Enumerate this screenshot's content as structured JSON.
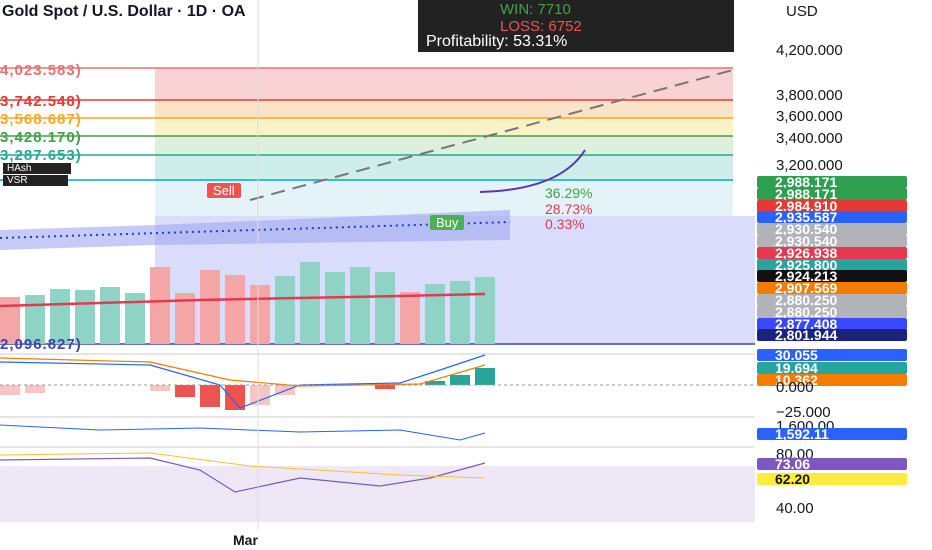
{
  "header": {
    "title": "Gold Spot / U.S. Dollar · 1D · OA",
    "currency": "USD"
  },
  "stats": {
    "win": "WIN: 7710",
    "loss": "LOSS: 6752",
    "profitability": "Profitability: 53.31%"
  },
  "price_axis": [
    "4,200.000",
    "3,800.000",
    "3,600.000",
    "3,400.000",
    "3,200.000"
  ],
  "price_tags": [
    {
      "label": "2,988.171",
      "color": "#2e9e4f"
    },
    {
      "label": "2,988.171",
      "color": "#2e9e4f"
    },
    {
      "label": "2,984.910",
      "color": "#e53935"
    },
    {
      "label": "2,935.587",
      "color": "#2962ff"
    },
    {
      "label": "2,930.540",
      "color": "#b0b3b8"
    },
    {
      "label": "2,930.540",
      "color": "#b0b3b8"
    },
    {
      "label": "2,926.938",
      "color": "#e53950"
    },
    {
      "label": "2,925.800",
      "color": "#26a69a"
    },
    {
      "label": "2,924.213",
      "color": "#111111"
    },
    {
      "label": "2,907.569",
      "color": "#f57c00"
    },
    {
      "label": "2,880.250",
      "color": "#b0b3b8"
    },
    {
      "label": "2,880.250",
      "color": "#b0b3b8"
    },
    {
      "label": "2,877.408",
      "color": "#3949ff"
    },
    {
      "label": "2,801.944",
      "color": "#1a237e"
    }
  ],
  "fib_labels": [
    "4,023.583)",
    "3,742.548)",
    "3,568.687)",
    "3,428.170)",
    "3,287.653)",
    "2,096.827)"
  ],
  "signals": {
    "sell": "Sell",
    "buy": "Buy",
    "pct": [
      "36.29%",
      "28.73%",
      "0.33%"
    ]
  },
  "legend": {
    "a": "HAsh",
    "b": "VSR"
  },
  "oscillator": {
    "tags": [
      {
        "label": "30.055",
        "color": "#2962ff"
      },
      {
        "label": "19.694",
        "color": "#26a69a"
      },
      {
        "label": "10.362",
        "color": "#f57c00"
      }
    ],
    "axis": [
      "0.000",
      "−25.000"
    ]
  },
  "volume_panel": {
    "axis": "1,600.00",
    "tag": {
      "label": "1,592.11",
      "color": "#2962ff"
    }
  },
  "rsi_panel": {
    "axis": [
      "80.00",
      "40.00"
    ],
    "tags": [
      {
        "label": "73.06",
        "color": "#7e57c2"
      },
      {
        "label": "62.20",
        "color": "#ffeb3b"
      }
    ]
  },
  "time_axis": "Mar"
}
